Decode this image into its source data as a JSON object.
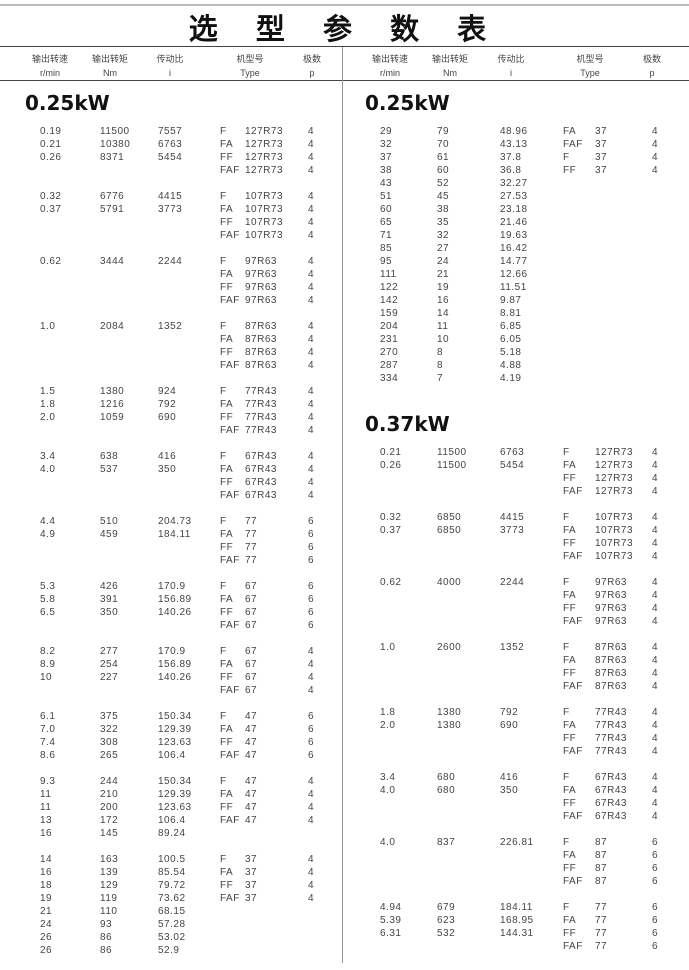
{
  "title": "选 型 参 数 表",
  "headers": [
    {
      "cn": "输出转速",
      "en": "r/min"
    },
    {
      "cn": "输出转矩",
      "en": "Nm"
    },
    {
      "cn": "传动比",
      "en": "i"
    },
    {
      "cn": "机型号",
      "en": "Type"
    },
    {
      "cn": "极数",
      "en": "p"
    }
  ],
  "left": [
    {
      "power": "0.25kW",
      "groups": [
        [
          [
            "0.19",
            "11500",
            "7557",
            "F",
            "127R73",
            "4"
          ],
          [
            "0.21",
            "10380",
            "6763",
            "FA",
            "127R73",
            "4"
          ],
          [
            "0.26",
            "8371",
            "5454",
            "FF",
            "127R73",
            "4"
          ],
          [
            "",
            "",
            "",
            "FAF",
            "127R73",
            "4"
          ]
        ],
        [
          [
            "0.32",
            "6776",
            "4415",
            "F",
            "107R73",
            "4"
          ],
          [
            "0.37",
            "5791",
            "3773",
            "FA",
            "107R73",
            "4"
          ],
          [
            "",
            "",
            "",
            "FF",
            "107R73",
            "4"
          ],
          [
            "",
            "",
            "",
            "FAF",
            "107R73",
            "4"
          ]
        ],
        [
          [
            "0.62",
            "3444",
            "2244",
            "F",
            "97R63",
            "4"
          ],
          [
            "",
            "",
            "",
            "FA",
            "97R63",
            "4"
          ],
          [
            "",
            "",
            "",
            "FF",
            "97R63",
            "4"
          ],
          [
            "",
            "",
            "",
            "FAF",
            "97R63",
            "4"
          ]
        ],
        [
          [
            "1.0",
            "2084",
            "1352",
            "F",
            "87R63",
            "4"
          ],
          [
            "",
            "",
            "",
            "FA",
            "87R63",
            "4"
          ],
          [
            "",
            "",
            "",
            "FF",
            "87R63",
            "4"
          ],
          [
            "",
            "",
            "",
            "FAF",
            "87R63",
            "4"
          ]
        ],
        [
          [
            "1.5",
            "1380",
            "924",
            "F",
            "77R43",
            "4"
          ],
          [
            "1.8",
            "1216",
            "792",
            "FA",
            "77R43",
            "4"
          ],
          [
            "2.0",
            "1059",
            "690",
            "FF",
            "77R43",
            "4"
          ],
          [
            "",
            "",
            "",
            "FAF",
            "77R43",
            "4"
          ]
        ],
        [
          [
            "3.4",
            "638",
            "416",
            "F",
            "67R43",
            "4"
          ],
          [
            "4.0",
            "537",
            "350",
            "FA",
            "67R43",
            "4"
          ],
          [
            "",
            "",
            "",
            "FF",
            "67R43",
            "4"
          ],
          [
            "",
            "",
            "",
            "FAF",
            "67R43",
            "4"
          ]
        ],
        [
          [
            "4.4",
            "510",
            "204.73",
            "F",
            "77",
            "6"
          ],
          [
            "4.9",
            "459",
            "184.11",
            "FA",
            "77",
            "6"
          ],
          [
            "",
            "",
            "",
            "FF",
            "77",
            "6"
          ],
          [
            "",
            "",
            "",
            "FAF",
            "77",
            "6"
          ]
        ],
        [
          [
            "5.3",
            "426",
            "170.9",
            "F",
            "67",
            "6"
          ],
          [
            "5.8",
            "391",
            "156.89",
            "FA",
            "67",
            "6"
          ],
          [
            "6.5",
            "350",
            "140.26",
            "FF",
            "67",
            "6"
          ],
          [
            "",
            "",
            "",
            "FAF",
            "67",
            "6"
          ]
        ],
        [
          [
            "8.2",
            "277",
            "170.9",
            "F",
            "67",
            "4"
          ],
          [
            "8.9",
            "254",
            "156.89",
            "FA",
            "67",
            "4"
          ],
          [
            "10",
            "227",
            "140.26",
            "FF",
            "67",
            "4"
          ],
          [
            "",
            "",
            "",
            "FAF",
            "67",
            "4"
          ]
        ],
        [
          [
            "6.1",
            "375",
            "150.34",
            "F",
            "47",
            "6"
          ],
          [
            "7.0",
            "322",
            "129.39",
            "FA",
            "47",
            "6"
          ],
          [
            "7.4",
            "308",
            "123.63",
            "FF",
            "47",
            "6"
          ],
          [
            "8.6",
            "265",
            "106.4",
            "FAF",
            "47",
            "6"
          ]
        ],
        [
          [
            "9.3",
            "244",
            "150.34",
            "F",
            "47",
            "4"
          ],
          [
            "11",
            "210",
            "129.39",
            "FA",
            "47",
            "4"
          ],
          [
            "11",
            "200",
            "123.63",
            "FF",
            "47",
            "4"
          ],
          [
            "13",
            "172",
            "106.4",
            "FAF",
            "47",
            "4"
          ],
          [
            "16",
            "145",
            "89.24",
            "",
            "",
            ""
          ]
        ],
        [
          [
            "14",
            "163",
            "100.5",
            "F",
            "37",
            "4"
          ],
          [
            "16",
            "139",
            "85.54",
            "FA",
            "37",
            "4"
          ],
          [
            "18",
            "129",
            "79.72",
            "FF",
            "37",
            "4"
          ],
          [
            "19",
            "119",
            "73.62",
            "FAF",
            "37",
            "4"
          ],
          [
            "21",
            "110",
            "68.15",
            "",
            "",
            ""
          ],
          [
            "24",
            "93",
            "57.28",
            "",
            "",
            ""
          ],
          [
            "26",
            "86",
            "53.02",
            "",
            "",
            ""
          ],
          [
            "26",
            "86",
            "52.9",
            "",
            "",
            ""
          ]
        ]
      ]
    }
  ],
  "right": [
    {
      "power": "0.25kW",
      "groups": [
        [
          [
            "29",
            "79",
            "48.96",
            "FA",
            "37",
            "4"
          ],
          [
            "32",
            "70",
            "43.13",
            "FAF",
            "37",
            "4"
          ],
          [
            "37",
            "61",
            "37.8",
            "F",
            "37",
            "4"
          ],
          [
            "38",
            "60",
            "36.8",
            "FF",
            "37",
            "4"
          ],
          [
            "43",
            "52",
            "32.27",
            "",
            "",
            ""
          ],
          [
            "51",
            "45",
            "27.53",
            "",
            "",
            ""
          ],
          [
            "60",
            "38",
            "23.18",
            "",
            "",
            ""
          ],
          [
            "65",
            "35",
            "21.46",
            "",
            "",
            ""
          ],
          [
            "71",
            "32",
            "19.63",
            "",
            "",
            ""
          ],
          [
            "85",
            "27",
            "16.42",
            "",
            "",
            ""
          ],
          [
            "95",
            "24",
            "14.77",
            "",
            "",
            ""
          ],
          [
            "111",
            "21",
            "12.66",
            "",
            "",
            ""
          ],
          [
            "122",
            "19",
            "11.51",
            "",
            "",
            ""
          ],
          [
            "142",
            "16",
            "9.87",
            "",
            "",
            ""
          ],
          [
            "159",
            "14",
            "8.81",
            "",
            "",
            ""
          ],
          [
            "204",
            "11",
            "6.85",
            "",
            "",
            ""
          ],
          [
            "231",
            "10",
            "6.05",
            "",
            "",
            ""
          ],
          [
            "270",
            "8",
            "5.18",
            "",
            "",
            ""
          ],
          [
            "287",
            "8",
            "4.88",
            "",
            "",
            ""
          ],
          [
            "334",
            "7",
            "4.19",
            "",
            "",
            ""
          ]
        ]
      ]
    },
    {
      "power": "0.37kW",
      "groups": [
        [
          [
            "0.21",
            "11500",
            "6763",
            "F",
            "127R73",
            "4"
          ],
          [
            "0.26",
            "11500",
            "5454",
            "FA",
            "127R73",
            "4"
          ],
          [
            "",
            "",
            "",
            "FF",
            "127R73",
            "4"
          ],
          [
            "",
            "",
            "",
            "FAF",
            "127R73",
            "4"
          ]
        ],
        [
          [
            "0.32",
            "6850",
            "4415",
            "F",
            "107R73",
            "4"
          ],
          [
            "0.37",
            "6850",
            "3773",
            "FA",
            "107R73",
            "4"
          ],
          [
            "",
            "",
            "",
            "FF",
            "107R73",
            "4"
          ],
          [
            "",
            "",
            "",
            "FAF",
            "107R73",
            "4"
          ]
        ],
        [
          [
            "0.62",
            "4000",
            "2244",
            "F",
            "97R63",
            "4"
          ],
          [
            "",
            "",
            "",
            "FA",
            "97R63",
            "4"
          ],
          [
            "",
            "",
            "",
            "FF",
            "97R63",
            "4"
          ],
          [
            "",
            "",
            "",
            "FAF",
            "97R63",
            "4"
          ]
        ],
        [
          [
            "1.0",
            "2600",
            "1352",
            "F",
            "87R63",
            "4"
          ],
          [
            "",
            "",
            "",
            "FA",
            "87R63",
            "4"
          ],
          [
            "",
            "",
            "",
            "FF",
            "87R63",
            "4"
          ],
          [
            "",
            "",
            "",
            "FAF",
            "87R63",
            "4"
          ]
        ],
        [
          [
            "1.8",
            "1380",
            "792",
            "F",
            "77R43",
            "4"
          ],
          [
            "2.0",
            "1380",
            "690",
            "FA",
            "77R43",
            "4"
          ],
          [
            "",
            "",
            "",
            "FF",
            "77R43",
            "4"
          ],
          [
            "",
            "",
            "",
            "FAF",
            "77R43",
            "4"
          ]
        ],
        [
          [
            "3.4",
            "680",
            "416",
            "F",
            "67R43",
            "4"
          ],
          [
            "4.0",
            "680",
            "350",
            "FA",
            "67R43",
            "4"
          ],
          [
            "",
            "",
            "",
            "FF",
            "67R43",
            "4"
          ],
          [
            "",
            "",
            "",
            "FAF",
            "67R43",
            "4"
          ]
        ],
        [
          [
            "4.0",
            "837",
            "226.81",
            "F",
            "87",
            "6"
          ],
          [
            "",
            "",
            "",
            "FA",
            "87",
            "6"
          ],
          [
            "",
            "",
            "",
            "FF",
            "87",
            "6"
          ],
          [
            "",
            "",
            "",
            "FAF",
            "87",
            "6"
          ]
        ],
        [
          [
            "4.94",
            "679",
            "184.11",
            "F",
            "77",
            "6"
          ],
          [
            "5.39",
            "623",
            "168.95",
            "FA",
            "77",
            "6"
          ],
          [
            "6.31",
            "532",
            "144.31",
            "FF",
            "77",
            "6"
          ],
          [
            "",
            "",
            "",
            "FAF",
            "77",
            "6"
          ]
        ]
      ]
    }
  ]
}
